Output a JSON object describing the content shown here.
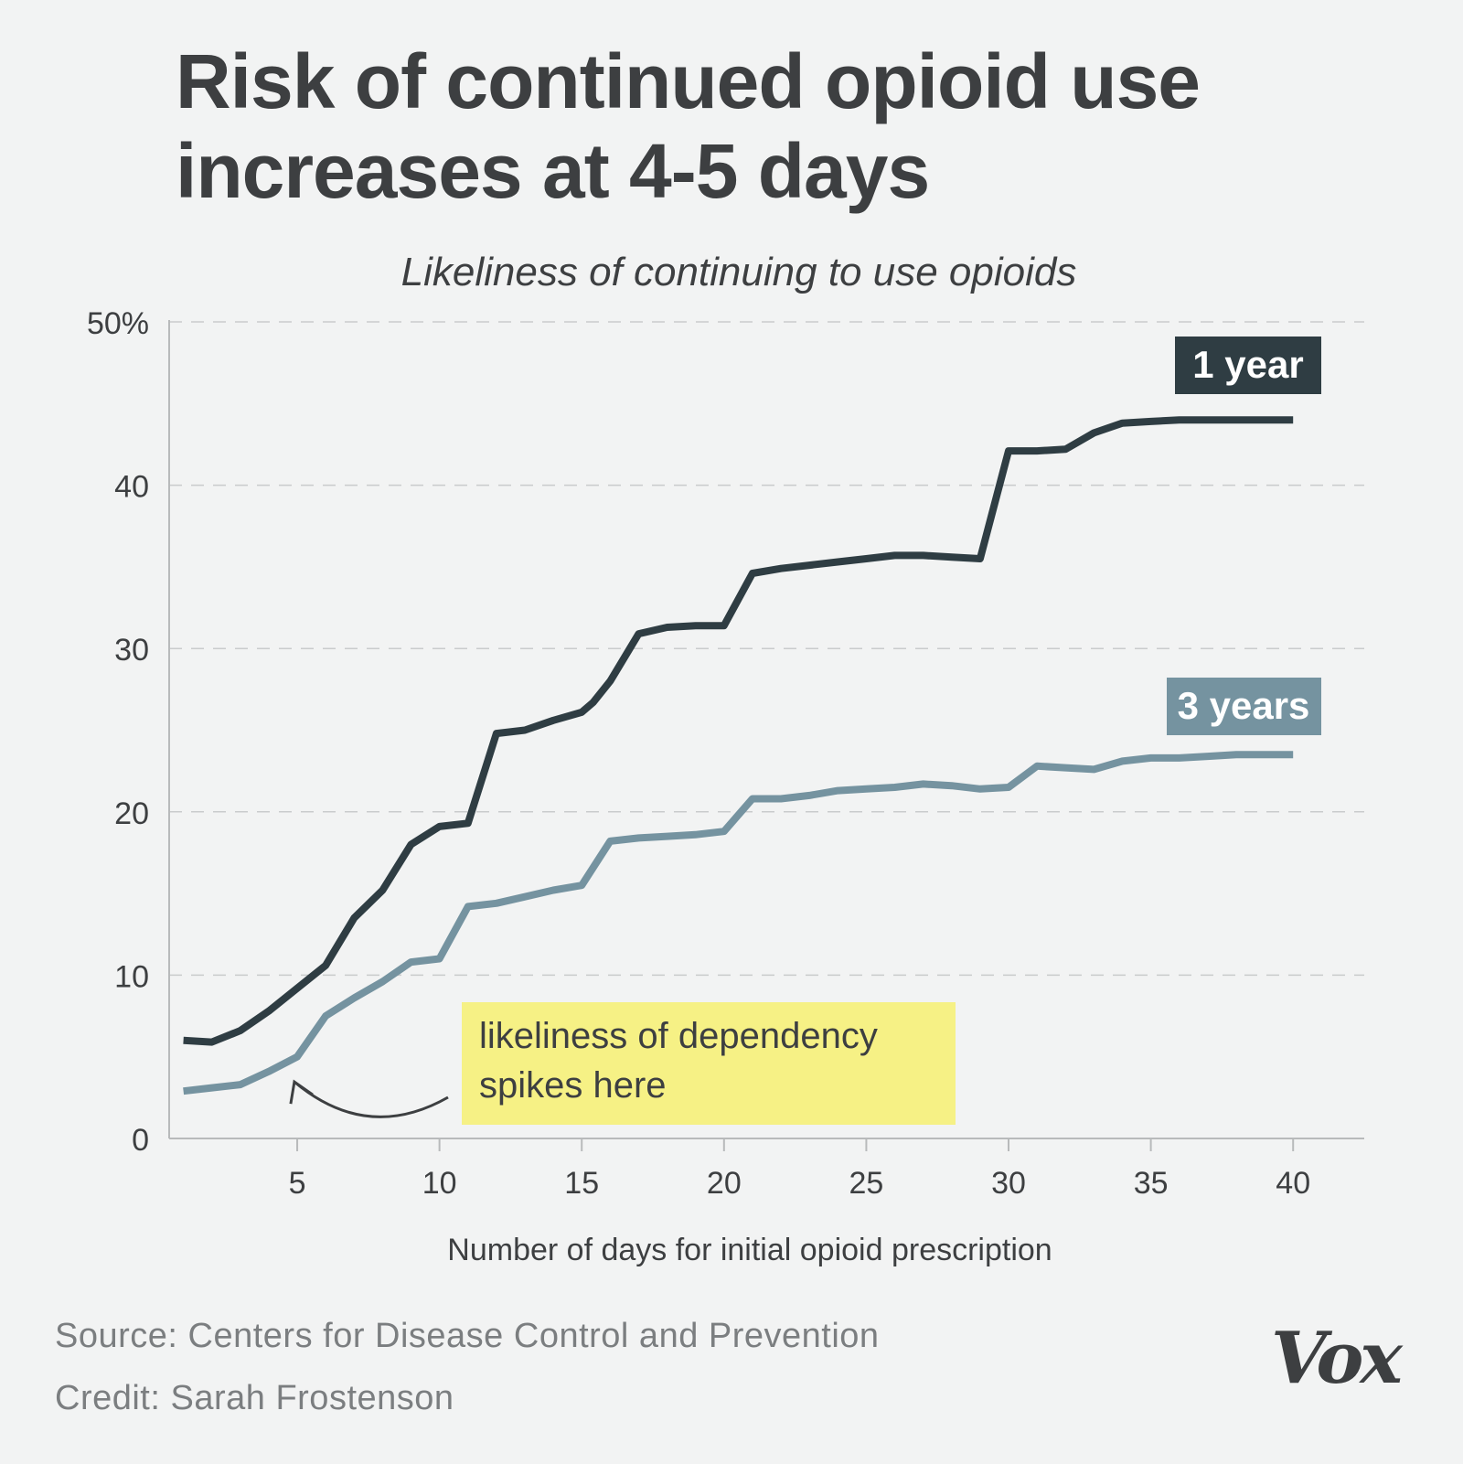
{
  "header": {
    "title_line1": "Risk of continued opioid use",
    "title_line2": "increases at 4-5 days"
  },
  "chart_data": {
    "type": "line",
    "title": "Risk of continued opioid use increases at 4-5 days",
    "subtitle": "Likeliness of continuing to use opioids",
    "xlabel": "Number of days for initial opioid prescription",
    "ylabel": "",
    "xlim": [
      0.5,
      42.5
    ],
    "ylim": [
      0,
      50
    ],
    "x_ticks": [
      5,
      10,
      15,
      20,
      25,
      30,
      35,
      40
    ],
    "x_tick_labels": [
      "5",
      "10",
      "15",
      "20",
      "25",
      "30",
      "35",
      "40"
    ],
    "y_ticks": [
      0,
      10,
      20,
      30,
      40,
      50
    ],
    "y_tick_labels": [
      "0",
      "10",
      "20",
      "30",
      "40",
      "50%"
    ],
    "grid": true,
    "colors": {
      "one_year": "#2f3d43",
      "three_years": "#7593a0",
      "annotation_bg": "#f6f185"
    },
    "series": [
      {
        "name": "1 year",
        "x": [
          1,
          2,
          3,
          4,
          5,
          6,
          7,
          8,
          9,
          10,
          11,
          12,
          13,
          14,
          15,
          15.4,
          16,
          17,
          18,
          19,
          20,
          21,
          22,
          23,
          24,
          25,
          26,
          27,
          28,
          29,
          30,
          31,
          32,
          33,
          34,
          35,
          36,
          37,
          38,
          39,
          40
        ],
        "values": [
          6.0,
          5.9,
          6.6,
          7.8,
          9.2,
          10.6,
          13.5,
          15.2,
          18.0,
          19.1,
          19.3,
          24.8,
          25.0,
          25.6,
          26.1,
          26.7,
          28.0,
          30.9,
          31.3,
          31.4,
          31.4,
          34.6,
          34.9,
          35.1,
          35.3,
          35.5,
          35.7,
          35.7,
          35.6,
          35.5,
          42.1,
          42.1,
          42.2,
          43.2,
          43.8,
          43.9,
          44.0,
          44.0,
          44.0,
          44.0,
          44.0
        ],
        "label": "1 year"
      },
      {
        "name": "3 years",
        "x": [
          1,
          2,
          3,
          4,
          5,
          6,
          7,
          8,
          9,
          10,
          11,
          12,
          13,
          14,
          15,
          16,
          17,
          18,
          19,
          20,
          21,
          22,
          23,
          24,
          25,
          26,
          27,
          28,
          29,
          30,
          31,
          32,
          33,
          34,
          35,
          36,
          37,
          38,
          39,
          40
        ],
        "values": [
          2.9,
          3.1,
          3.3,
          4.1,
          5.0,
          7.5,
          8.6,
          9.6,
          10.8,
          11.0,
          14.2,
          14.4,
          14.8,
          15.2,
          15.5,
          18.2,
          18.4,
          18.5,
          18.6,
          18.8,
          20.8,
          20.8,
          21.0,
          21.3,
          21.4,
          21.5,
          21.7,
          21.6,
          21.4,
          21.5,
          22.8,
          22.7,
          22.6,
          23.1,
          23.3,
          23.3,
          23.4,
          23.5,
          23.5,
          23.5
        ],
        "label": "3 years"
      }
    ],
    "annotation": {
      "line1": "likeliness of dependency",
      "line2": "spikes here",
      "target_x": 4.9,
      "target_y": 3.8
    }
  },
  "footer": {
    "source": "Source: Centers for Disease Control and Prevention",
    "credit": "Credit: Sarah Frostenson",
    "logo": "Vox"
  }
}
